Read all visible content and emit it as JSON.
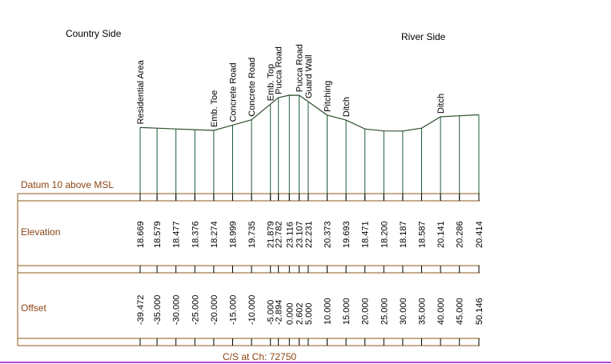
{
  "header": {
    "left_label": "Country Side",
    "right_label": "River Side"
  },
  "table": {
    "datum_label": "Datum 10 above MSL",
    "elevation_label": "Elevation",
    "offset_label": "Offset",
    "caption": "C/S at Ch: 72750"
  },
  "colors": {
    "profile_line": "#2f4f2f",
    "station_line": "#1e5c3a",
    "table_frame": "#8b5a1a",
    "table_text": "#8b4513",
    "header_text": "#000000",
    "bottom_rule": "#b04fd6"
  },
  "chart_data": {
    "type": "line",
    "title": "C/S at Ch: 72750",
    "xlabel": "Offset",
    "ylabel": "Elevation",
    "datum": 10,
    "stations": [
      {
        "offset": "-39.472",
        "elevation": "18.669",
        "feature": "Residential Area"
      },
      {
        "offset": "-35.000",
        "elevation": "18.579",
        "feature": ""
      },
      {
        "offset": "-30.000",
        "elevation": "18.477",
        "feature": ""
      },
      {
        "offset": "-25.000",
        "elevation": "18.376",
        "feature": ""
      },
      {
        "offset": "-20.000",
        "elevation": "18.274",
        "feature": "Emb. Toe"
      },
      {
        "offset": "-15.000",
        "elevation": "18.999",
        "feature": "Concrete Road"
      },
      {
        "offset": "-10.000",
        "elevation": "19.735",
        "feature": "Concrete Road"
      },
      {
        "offset": "-5.000",
        "elevation": "21.879",
        "feature": "Emb. Top"
      },
      {
        "offset": "-2.894",
        "elevation": "22.782",
        "feature": "Pucca Road"
      },
      {
        "offset": "0.000",
        "elevation": "23.116",
        "feature": ""
      },
      {
        "offset": "2.602",
        "elevation": "23.107",
        "feature": "Pucca Road"
      },
      {
        "offset": "5.000",
        "elevation": "22.231",
        "feature": "Guard Wall"
      },
      {
        "offset": "10.000",
        "elevation": "20.373",
        "feature": "Pitching"
      },
      {
        "offset": "15.000",
        "elevation": "19.693",
        "feature": "Ditch"
      },
      {
        "offset": "20.000",
        "elevation": "18.471",
        "feature": ""
      },
      {
        "offset": "25.000",
        "elevation": "18.200",
        "feature": ""
      },
      {
        "offset": "30.000",
        "elevation": "18.187",
        "feature": ""
      },
      {
        "offset": "35.000",
        "elevation": "18.587",
        "feature": ""
      },
      {
        "offset": "40.000",
        "elevation": "20.141",
        "feature": "Ditch"
      },
      {
        "offset": "45.000",
        "elevation": "20.286",
        "feature": ""
      },
      {
        "offset": "50.146",
        "elevation": "20.414",
        "feature": ""
      }
    ]
  }
}
